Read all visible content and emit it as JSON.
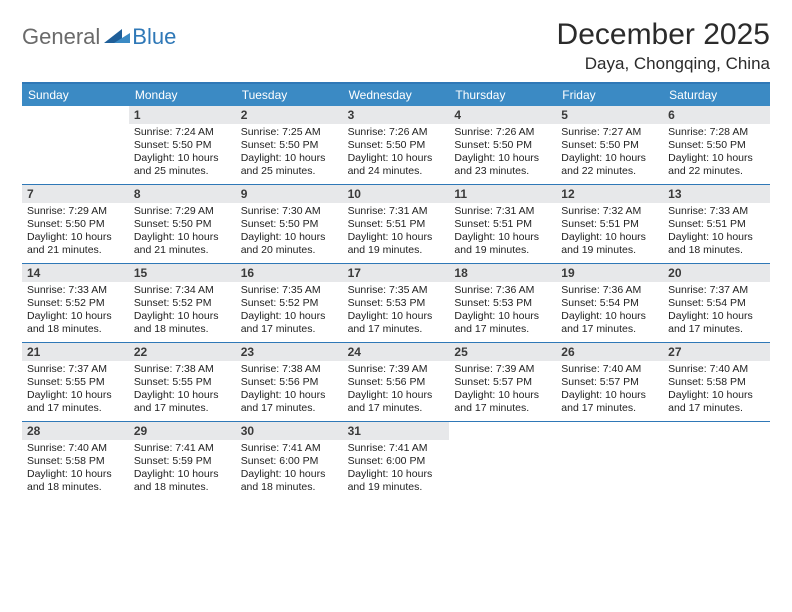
{
  "brand": {
    "part1": "General",
    "part2": "Blue"
  },
  "title": "December 2025",
  "location": "Daya, Chongqing, China",
  "colors": {
    "accent": "#3b8ac4",
    "divider": "#2f78b7",
    "daynum_bg": "#e7e8ea",
    "text": "#222222",
    "logo_gray": "#6a6a6a",
    "background": "#ffffff"
  },
  "dayNames": [
    "Sunday",
    "Monday",
    "Tuesday",
    "Wednesday",
    "Thursday",
    "Friday",
    "Saturday"
  ],
  "weeks": [
    [
      {
        "n": "",
        "sr": "",
        "ss": "",
        "dl": ""
      },
      {
        "n": "1",
        "sr": "7:24 AM",
        "ss": "5:50 PM",
        "dl": "10 hours and 25 minutes."
      },
      {
        "n": "2",
        "sr": "7:25 AM",
        "ss": "5:50 PM",
        "dl": "10 hours and 25 minutes."
      },
      {
        "n": "3",
        "sr": "7:26 AM",
        "ss": "5:50 PM",
        "dl": "10 hours and 24 minutes."
      },
      {
        "n": "4",
        "sr": "7:26 AM",
        "ss": "5:50 PM",
        "dl": "10 hours and 23 minutes."
      },
      {
        "n": "5",
        "sr": "7:27 AM",
        "ss": "5:50 PM",
        "dl": "10 hours and 22 minutes."
      },
      {
        "n": "6",
        "sr": "7:28 AM",
        "ss": "5:50 PM",
        "dl": "10 hours and 22 minutes."
      }
    ],
    [
      {
        "n": "7",
        "sr": "7:29 AM",
        "ss": "5:50 PM",
        "dl": "10 hours and 21 minutes."
      },
      {
        "n": "8",
        "sr": "7:29 AM",
        "ss": "5:50 PM",
        "dl": "10 hours and 21 minutes."
      },
      {
        "n": "9",
        "sr": "7:30 AM",
        "ss": "5:50 PM",
        "dl": "10 hours and 20 minutes."
      },
      {
        "n": "10",
        "sr": "7:31 AM",
        "ss": "5:51 PM",
        "dl": "10 hours and 19 minutes."
      },
      {
        "n": "11",
        "sr": "7:31 AM",
        "ss": "5:51 PM",
        "dl": "10 hours and 19 minutes."
      },
      {
        "n": "12",
        "sr": "7:32 AM",
        "ss": "5:51 PM",
        "dl": "10 hours and 19 minutes."
      },
      {
        "n": "13",
        "sr": "7:33 AM",
        "ss": "5:51 PM",
        "dl": "10 hours and 18 minutes."
      }
    ],
    [
      {
        "n": "14",
        "sr": "7:33 AM",
        "ss": "5:52 PM",
        "dl": "10 hours and 18 minutes."
      },
      {
        "n": "15",
        "sr": "7:34 AM",
        "ss": "5:52 PM",
        "dl": "10 hours and 18 minutes."
      },
      {
        "n": "16",
        "sr": "7:35 AM",
        "ss": "5:52 PM",
        "dl": "10 hours and 17 minutes."
      },
      {
        "n": "17",
        "sr": "7:35 AM",
        "ss": "5:53 PM",
        "dl": "10 hours and 17 minutes."
      },
      {
        "n": "18",
        "sr": "7:36 AM",
        "ss": "5:53 PM",
        "dl": "10 hours and 17 minutes."
      },
      {
        "n": "19",
        "sr": "7:36 AM",
        "ss": "5:54 PM",
        "dl": "10 hours and 17 minutes."
      },
      {
        "n": "20",
        "sr": "7:37 AM",
        "ss": "5:54 PM",
        "dl": "10 hours and 17 minutes."
      }
    ],
    [
      {
        "n": "21",
        "sr": "7:37 AM",
        "ss": "5:55 PM",
        "dl": "10 hours and 17 minutes."
      },
      {
        "n": "22",
        "sr": "7:38 AM",
        "ss": "5:55 PM",
        "dl": "10 hours and 17 minutes."
      },
      {
        "n": "23",
        "sr": "7:38 AM",
        "ss": "5:56 PM",
        "dl": "10 hours and 17 minutes."
      },
      {
        "n": "24",
        "sr": "7:39 AM",
        "ss": "5:56 PM",
        "dl": "10 hours and 17 minutes."
      },
      {
        "n": "25",
        "sr": "7:39 AM",
        "ss": "5:57 PM",
        "dl": "10 hours and 17 minutes."
      },
      {
        "n": "26",
        "sr": "7:40 AM",
        "ss": "5:57 PM",
        "dl": "10 hours and 17 minutes."
      },
      {
        "n": "27",
        "sr": "7:40 AM",
        "ss": "5:58 PM",
        "dl": "10 hours and 17 minutes."
      }
    ],
    [
      {
        "n": "28",
        "sr": "7:40 AM",
        "ss": "5:58 PM",
        "dl": "10 hours and 18 minutes."
      },
      {
        "n": "29",
        "sr": "7:41 AM",
        "ss": "5:59 PM",
        "dl": "10 hours and 18 minutes."
      },
      {
        "n": "30",
        "sr": "7:41 AM",
        "ss": "6:00 PM",
        "dl": "10 hours and 18 minutes."
      },
      {
        "n": "31",
        "sr": "7:41 AM",
        "ss": "6:00 PM",
        "dl": "10 hours and 19 minutes."
      },
      {
        "n": "",
        "sr": "",
        "ss": "",
        "dl": ""
      },
      {
        "n": "",
        "sr": "",
        "ss": "",
        "dl": ""
      },
      {
        "n": "",
        "sr": "",
        "ss": "",
        "dl": ""
      }
    ]
  ],
  "labels": {
    "sunrise": "Sunrise:",
    "sunset": "Sunset:",
    "daylight": "Daylight:"
  }
}
